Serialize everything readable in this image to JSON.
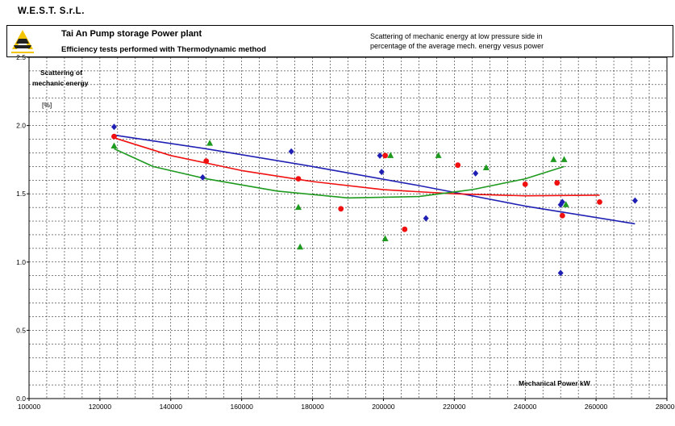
{
  "company": "W.E.S.T.   S.r.L.",
  "header": {
    "plant_title": "Tai An  Pump storage Power plant",
    "method": "Efficiency tests performed with Thermodynamic method",
    "description_line1": "Scattering of mechanic energy at low pressure side in",
    "description_line2": "percentage of the average mech. energy vesus power"
  },
  "colors": {
    "blue": "#1f1fb4",
    "red": "#f01010",
    "green": "#1e9a1e",
    "logo": "#f4c400"
  },
  "chart_data": {
    "type": "scatter",
    "ylabel_line1": "Scattering of",
    "ylabel_line2": "mechanic energy",
    "yunit": "[%]",
    "xlabel": "Mechanical Power  kW",
    "xlim": [
      100000,
      280000
    ],
    "ylim": [
      0.0,
      2.5
    ],
    "xticks": [
      100000,
      120000,
      140000,
      160000,
      180000,
      200000,
      220000,
      240000,
      260000,
      280000
    ],
    "yticks": [
      0.0,
      0.5,
      1.0,
      1.5,
      2.0,
      2.5
    ],
    "ytick_labels": [
      "0.0",
      "0.5",
      "1.0",
      "1.5",
      "2.0",
      "2.5"
    ],
    "grid": true,
    "series": [
      {
        "color": "blue",
        "marker": "diamond",
        "points": [
          [
            124000,
            1.99
          ],
          [
            149000,
            1.62
          ],
          [
            174000,
            1.81
          ],
          [
            199000,
            1.78
          ],
          [
            199500,
            1.66
          ],
          [
            212000,
            1.32
          ],
          [
            226000,
            1.65
          ],
          [
            250000,
            1.42
          ],
          [
            250500,
            1.44
          ],
          [
            250000,
            0.92
          ],
          [
            271000,
            1.45
          ]
        ],
        "trend": [
          [
            124000,
            1.93
          ],
          [
            150000,
            1.83
          ],
          [
            180000,
            1.7
          ],
          [
            210000,
            1.56
          ],
          [
            240000,
            1.41
          ],
          [
            271000,
            1.28
          ]
        ]
      },
      {
        "color": "red",
        "marker": "circle",
        "points": [
          [
            124000,
            1.92
          ],
          [
            150000,
            1.74
          ],
          [
            176000,
            1.61
          ],
          [
            188000,
            1.39
          ],
          [
            200500,
            1.78
          ],
          [
            206000,
            1.24
          ],
          [
            221000,
            1.71
          ],
          [
            240000,
            1.57
          ],
          [
            249000,
            1.58
          ],
          [
            250500,
            1.34
          ],
          [
            261000,
            1.44
          ]
        ],
        "trend": [
          [
            124000,
            1.91
          ],
          [
            140000,
            1.78
          ],
          [
            160000,
            1.67
          ],
          [
            180000,
            1.59
          ],
          [
            200000,
            1.53
          ],
          [
            220000,
            1.5
          ],
          [
            240000,
            1.485
          ],
          [
            261000,
            1.49
          ]
        ]
      },
      {
        "color": "green",
        "marker": "triangle",
        "points": [
          [
            124000,
            1.85
          ],
          [
            151000,
            1.87
          ],
          [
            176000,
            1.4
          ],
          [
            176500,
            1.11
          ],
          [
            200500,
            1.17
          ],
          [
            202000,
            1.78
          ],
          [
            215500,
            1.78
          ],
          [
            229000,
            1.69
          ],
          [
            248000,
            1.75
          ],
          [
            251000,
            1.75
          ],
          [
            251500,
            1.42
          ]
        ],
        "trend": [
          [
            124000,
            1.83
          ],
          [
            135000,
            1.7
          ],
          [
            150000,
            1.61
          ],
          [
            170000,
            1.52
          ],
          [
            190000,
            1.47
          ],
          [
            210000,
            1.48
          ],
          [
            225000,
            1.53
          ],
          [
            240000,
            1.61
          ],
          [
            251000,
            1.7
          ]
        ]
      }
    ]
  }
}
